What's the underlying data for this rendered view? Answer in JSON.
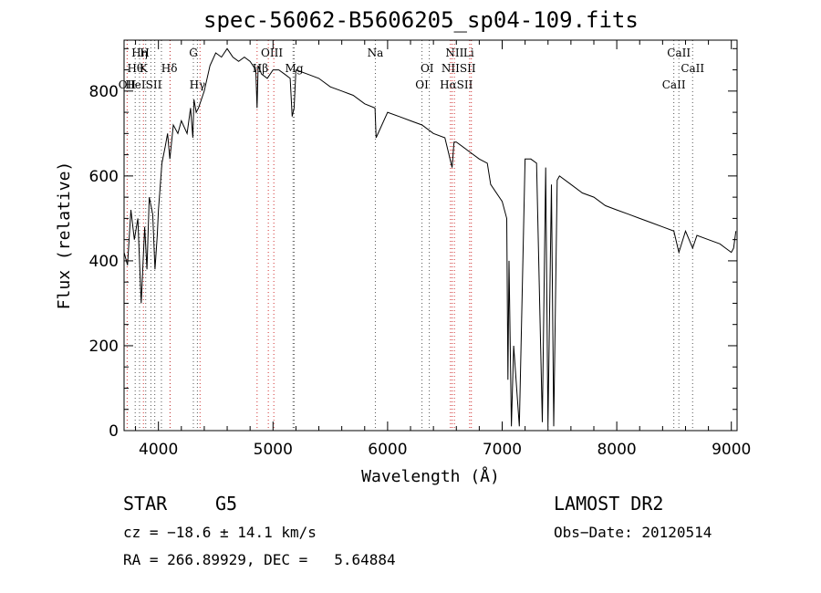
{
  "chart_data": {
    "type": "line",
    "title": "spec-56062-B5606205_sp04-109.fits",
    "xlabel": "Wavelength (Å)",
    "ylabel": "Flux (relative)",
    "xlim": [
      3700,
      9050
    ],
    "ylim": [
      0,
      920
    ],
    "xticks": [
      4000,
      5000,
      6000,
      7000,
      8000,
      9000
    ],
    "yticks": [
      0,
      200,
      400,
      600,
      800
    ],
    "grid": false,
    "series": [
      {
        "x": [
          3700,
          3730,
          3760,
          3790,
          3820,
          3850,
          3880,
          3900,
          3920,
          3950,
          3970,
          3990,
          4000,
          4030,
          4060,
          4080,
          4100,
          4130,
          4170,
          4200,
          4250,
          4280,
          4300,
          4310,
          4330,
          4350,
          4400,
          4450,
          4500,
          4550,
          4600,
          4650,
          4700,
          4750,
          4800,
          4850,
          4861,
          4870,
          4900,
          4950,
          5000,
          5050,
          5100,
          5150,
          5167,
          5184,
          5200,
          5300,
          5400,
          5500,
          5600,
          5700,
          5800,
          5890,
          5900,
          6000,
          6100,
          6200,
          6300,
          6400,
          6500,
          6563,
          6580,
          6600,
          6700,
          6800,
          6870,
          6900,
          7000,
          7040,
          7050,
          7060,
          7080,
          7100,
          7150,
          7200,
          7250,
          7300,
          7350,
          7380,
          7400,
          7430,
          7450,
          7480,
          7500,
          7600,
          7700,
          7800,
          7900,
          8000,
          8100,
          8200,
          8300,
          8400,
          8498,
          8542,
          8600,
          8662,
          8700,
          8800,
          8900,
          8950,
          9000,
          9020,
          9040
        ],
        "y": [
          420,
          390,
          520,
          450,
          500,
          300,
          480,
          380,
          550,
          510,
          380,
          460,
          520,
          630,
          670,
          700,
          640,
          720,
          700,
          730,
          700,
          760,
          690,
          780,
          750,
          760,
          800,
          860,
          890,
          880,
          900,
          880,
          870,
          880,
          870,
          850,
          760,
          860,
          840,
          830,
          850,
          850,
          840,
          830,
          740,
          760,
          850,
          840,
          830,
          810,
          800,
          790,
          770,
          760,
          690,
          750,
          740,
          730,
          720,
          700,
          690,
          620,
          680,
          680,
          660,
          640,
          630,
          580,
          540,
          500,
          120,
          400,
          10,
          200,
          10,
          640,
          640,
          630,
          20,
          620,
          10,
          580,
          10,
          590,
          600,
          580,
          560,
          550,
          530,
          520,
          510,
          500,
          490,
          480,
          470,
          420,
          470,
          430,
          460,
          450,
          440,
          430,
          420,
          430,
          470
        ]
      }
    ],
    "annotations": {
      "top_row": [
        {
          "label": "Hη",
          "x": 3835
        },
        {
          "label": "H",
          "x": 3880
        },
        {
          "label": "G",
          "x": 4305
        },
        {
          "label": "OIII",
          "x": 4990
        },
        {
          "label": "Na",
          "x": 5893
        },
        {
          "label": "NII",
          "x": 6585
        },
        {
          "label": "Li",
          "x": 6708
        },
        {
          "label": "CaII",
          "x": 8542
        }
      ],
      "second_row": [
        {
          "label": "Hθ",
          "x": 3798
        },
        {
          "label": "K",
          "x": 3870
        },
        {
          "label": "Hδ",
          "x": 4095
        },
        {
          "label": "Hβ",
          "x": 4890
        },
        {
          "label": "Mg",
          "x": 5185
        },
        {
          "label": "OI",
          "x": 6345
        },
        {
          "label": "NIISII",
          "x": 6620
        },
        {
          "label": "CaII",
          "x": 8662
        }
      ],
      "third_row": [
        {
          "label": "OII",
          "x": 3727
        },
        {
          "label": "HeISII",
          "x": 3870
        },
        {
          "label": "Hγ",
          "x": 4340
        },
        {
          "label": "OI",
          "x": 6300
        },
        {
          "label": "HαSII",
          "x": 6600
        },
        {
          "label": "CaII",
          "x": 8498
        }
      ],
      "lines_black": [
        3797,
        3835,
        3889,
        3934,
        3968,
        4026,
        4102,
        4305,
        4340,
        5175,
        5184,
        5893,
        6300,
        6364,
        8498,
        8542,
        8662
      ],
      "lines_red": [
        3727,
        3869,
        4101,
        4363,
        4861,
        4959,
        5007,
        6563,
        6548,
        6583,
        6716,
        6731
      ]
    }
  },
  "info": {
    "class_label": "STAR",
    "subclass": "G5",
    "survey": "LAMOST DR2",
    "cz": "cz = −18.6 ± 14.1 km/s",
    "obs_date": "Obs−Date: 20120514",
    "coords": "RA = 266.89929, DEC =   5.64884"
  }
}
